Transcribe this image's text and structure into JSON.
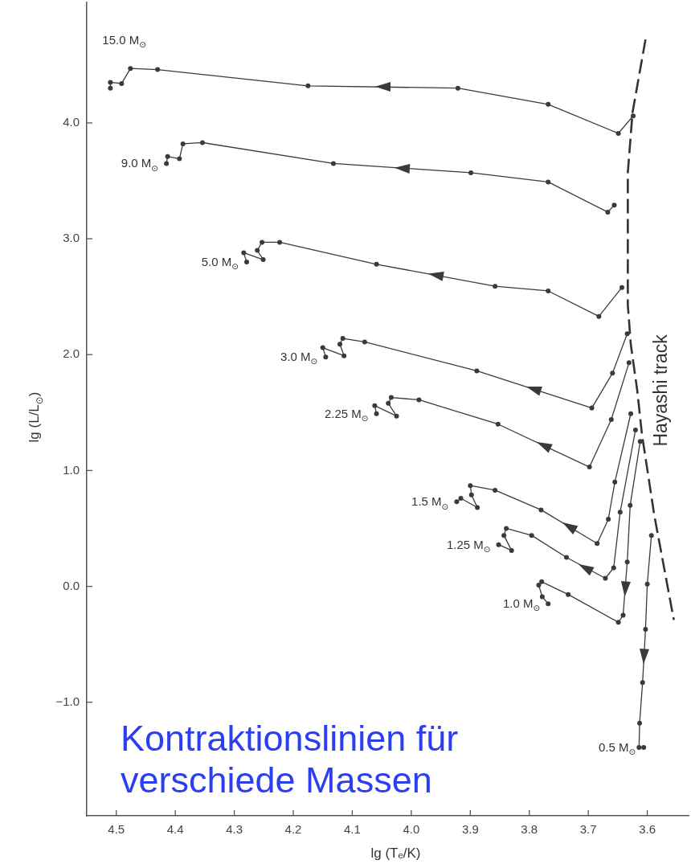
{
  "chart_data": {
    "type": "line",
    "xlabel": "lg (Tₑ/K)",
    "ylabel": "lg (L/L$_{⊙}$)",
    "xlim": [
      4.55,
      3.53
    ],
    "ylim": [
      -1.98,
      5.04
    ],
    "xticks": [
      4.5,
      4.4,
      4.3,
      4.2,
      4.1,
      {
        "value": 4,
        "label": "4.0"
      },
      3.9,
      3.8,
      3.7,
      3.6
    ],
    "yticks": [
      {
        "value": -1,
        "label": "−1.0"
      },
      {
        "value": 0,
        "label": "0.0"
      },
      {
        "value": 1,
        "label": "1.0"
      },
      {
        "value": 2,
        "label": "2.0"
      },
      {
        "value": 3,
        "label": "3.0"
      },
      {
        "value": 4,
        "label": "4.0"
      }
    ],
    "marker": "circle",
    "annotations": [
      "Kontraktionslinien für verschiede Massen"
    ],
    "series": [
      {
        "name": "15.0 M$_{⊙}$",
        "color": "#3a3a3a",
        "x": [
          3.624,
          3.649,
          3.768,
          3.921,
          4.175,
          4.43,
          4.476,
          4.491,
          4.51,
          4.51
        ],
        "values": [
          4.06,
          3.91,
          4.16,
          4.3,
          4.32,
          4.46,
          4.47,
          4.34,
          4.35,
          4.3
        ]
      },
      {
        "name": "9.0 M$_{⊙}$",
        "color": "#3a3a3a",
        "x": [
          3.656,
          3.667,
          3.768,
          3.899,
          4.132,
          4.354,
          4.387,
          4.393,
          4.413,
          4.415
        ],
        "values": [
          3.29,
          3.23,
          3.49,
          3.57,
          3.65,
          3.83,
          3.82,
          3.69,
          3.71,
          3.65
        ]
      },
      {
        "name": "5.0 M$_{⊙}$",
        "color": "#3a3a3a",
        "x": [
          3.643,
          3.682,
          3.768,
          3.858,
          4.059,
          4.223,
          4.253,
          4.261,
          4.251,
          4.284,
          4.279
        ],
        "values": [
          2.58,
          2.33,
          2.55,
          2.59,
          2.78,
          2.97,
          2.97,
          2.9,
          2.82,
          2.88,
          2.8
        ]
      },
      {
        "name": "3.0 M$_{⊙}$",
        "color": "#3a3a3a",
        "x": [
          3.634,
          3.659,
          3.694,
          3.889,
          4.079,
          4.116,
          4.121,
          4.114,
          4.15,
          4.145
        ],
        "values": [
          2.18,
          1.84,
          1.54,
          1.86,
          2.11,
          2.14,
          2.09,
          1.99,
          2.06,
          1.98
        ]
      },
      {
        "name": "2.25 M$_{⊙}$",
        "color": "#3a3a3a",
        "x": [
          3.631,
          3.661,
          3.698,
          3.853,
          3.987,
          4.034,
          4.039,
          4.025,
          4.062,
          4.059
        ],
        "values": [
          1.93,
          1.44,
          1.03,
          1.4,
          1.61,
          1.63,
          1.58,
          1.47,
          1.56,
          1.49
        ]
      },
      {
        "name": "1.5 M$_{⊙}$",
        "color": "#3a3a3a",
        "x": [
          3.628,
          3.655,
          3.666,
          3.685,
          3.78,
          3.858,
          3.9,
          3.898,
          3.888,
          3.916,
          3.923
        ],
        "values": [
          1.49,
          0.9,
          0.58,
          0.37,
          0.66,
          0.83,
          0.87,
          0.79,
          0.68,
          0.76,
          0.73
        ]
      },
      {
        "name": "1.25 M$_{⊙}$",
        "color": "#3a3a3a",
        "x": [
          3.62,
          3.646,
          3.657,
          3.671,
          3.737,
          3.796,
          3.839,
          3.843,
          3.83,
          3.852
        ],
        "values": [
          1.35,
          0.64,
          0.16,
          0.07,
          0.25,
          0.44,
          0.5,
          0.44,
          0.31,
          0.36
        ]
      },
      {
        "name": "1.0 M$_{⊙}$",
        "color": "#3a3a3a",
        "x": [
          3.612,
          3.629,
          3.634,
          3.641,
          3.649,
          3.734,
          3.779,
          3.784,
          3.778,
          3.768
        ],
        "values": [
          1.25,
          0.7,
          0.21,
          -0.25,
          -0.31,
          -0.07,
          0.04,
          0.01,
          -0.09,
          -0.15
        ]
      },
      {
        "name": "0.5 M$_{⊙}$",
        "color": "#3a3a3a",
        "x": [
          3.593,
          3.6,
          3.603,
          3.608,
          3.613,
          3.614,
          3.606
        ],
        "values": [
          0.44,
          0.02,
          -0.37,
          -0.83,
          -1.18,
          -1.39,
          -1.39
        ]
      },
      {
        "name": "Hayashi track",
        "marker": "none",
        "line_style": "dashed",
        "color": "#333333",
        "x": [
          3.603,
          3.625,
          3.633,
          3.633,
          3.628,
          3.617,
          3.609,
          3.588,
          3.555
        ],
        "values": [
          4.72,
          4.09,
          3.57,
          2.43,
          2.09,
          1.69,
          1.31,
          0.61,
          -0.29
        ]
      }
    ]
  }
}
